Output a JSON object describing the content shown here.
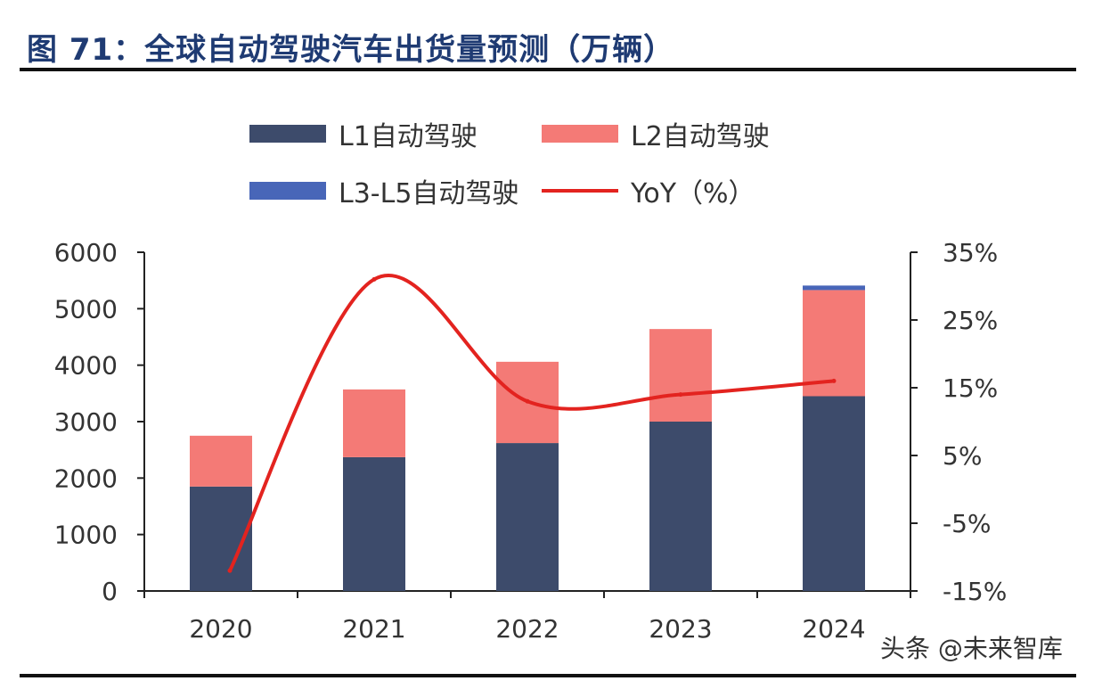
{
  "title": "图 71：全球自动驾驶汽车出货量预测（万辆）",
  "watermark": "头条 @未来智库",
  "legend": {
    "l1": "L1自动驾驶",
    "l2": "L2自动驾驶",
    "l35": "L3-L5自动驾驶",
    "yoy": "YoY（%）"
  },
  "colors": {
    "l1": "#3d4b6b",
    "l2": "#f47a76",
    "l35": "#4866b8",
    "yoy": "#e3231f",
    "axis": "#222222",
    "title": "#1f3b73"
  },
  "chart_data": {
    "type": "bar",
    "stacked": true,
    "categories": [
      "2020",
      "2021",
      "2022",
      "2023",
      "2024"
    ],
    "series": [
      {
        "name": "L1自动驾驶",
        "axis": "left",
        "values": [
          1850,
          2370,
          2620,
          3000,
          3450
        ]
      },
      {
        "name": "L2自动驾驶",
        "axis": "left",
        "values": [
          900,
          1200,
          1440,
          1640,
          1880
        ]
      },
      {
        "name": "L3-L5自动驾驶",
        "axis": "left",
        "values": [
          0,
          0,
          0,
          0,
          80
        ]
      },
      {
        "name": "YoY（%）",
        "type": "line",
        "axis": "right",
        "values": [
          -12,
          31,
          13,
          14,
          16
        ]
      }
    ],
    "ylim": [
      0,
      6000
    ],
    "yticks": [
      "0",
      "1000",
      "2000",
      "3000",
      "4000",
      "5000",
      "6000"
    ],
    "y2lim": [
      -15,
      35
    ],
    "y2ticks": [
      "-15%",
      "-5%",
      "5%",
      "15%",
      "25%",
      "35%"
    ],
    "legend_position": "top",
    "grid": false
  }
}
